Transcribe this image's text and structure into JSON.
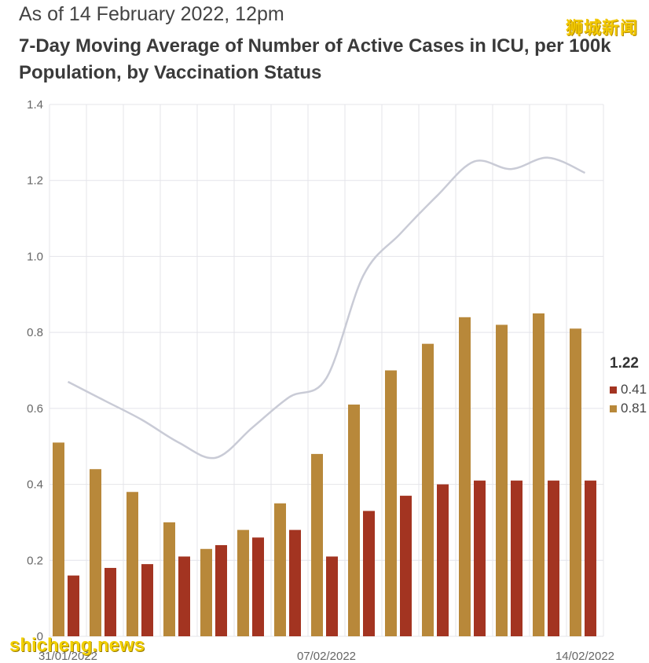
{
  "header": {
    "subtitle": "As of 14 February 2022, 12pm",
    "title": "7-Day Moving Average of Number of Active Cases in ICU, per 100k Population, by Vaccination Status"
  },
  "watermarks": {
    "top": "狮城新闻",
    "bottom": "shicheng.news"
  },
  "legend": {
    "total": "1.22",
    "red_value": "0.41",
    "gold_value": "0.81"
  },
  "colors": {
    "gold": "#b8883a",
    "red": "#a33421",
    "line": "#c9cbd6",
    "grid": "#e4e4ea"
  },
  "chart_data": {
    "type": "bar",
    "title": "7-Day Moving Average of Number of Active Cases in ICU, per 100k Population, by Vaccination Status",
    "xlabel": "",
    "ylabel": "",
    "ylim": [
      0,
      1.4
    ],
    "yticks": [
      "0",
      "0.2",
      "0.4",
      "0.6",
      "0.8",
      "1.0",
      "1.2",
      "1.4"
    ],
    "x_tick_labels": [
      "31/01/2022",
      "07/02/2022",
      "14/02/2022"
    ],
    "categories": [
      "31/01/2022",
      "01/02/2022",
      "02/02/2022",
      "03/02/2022",
      "04/02/2022",
      "05/02/2022",
      "06/02/2022",
      "07/02/2022",
      "08/02/2022",
      "09/02/2022",
      "10/02/2022",
      "11/02/2022",
      "12/02/2022",
      "13/02/2022",
      "14/02/2022"
    ],
    "series": [
      {
        "name": "series-gold",
        "type": "bar",
        "color": "#b8883a",
        "values": [
          0.51,
          0.44,
          0.38,
          0.3,
          0.23,
          0.28,
          0.35,
          0.48,
          0.61,
          0.7,
          0.77,
          0.84,
          0.82,
          0.85,
          0.81
        ]
      },
      {
        "name": "series-red",
        "type": "bar",
        "color": "#a33421",
        "values": [
          0.16,
          0.18,
          0.19,
          0.21,
          0.24,
          0.26,
          0.28,
          0.21,
          0.33,
          0.37,
          0.4,
          0.41,
          0.41,
          0.41,
          0.41
        ]
      },
      {
        "name": "series-total",
        "type": "line",
        "color": "#c9cbd6",
        "values": [
          0.67,
          0.62,
          0.57,
          0.51,
          0.47,
          0.55,
          0.63,
          0.68,
          0.95,
          1.06,
          1.16,
          1.25,
          1.23,
          1.26,
          1.22
        ]
      }
    ]
  }
}
